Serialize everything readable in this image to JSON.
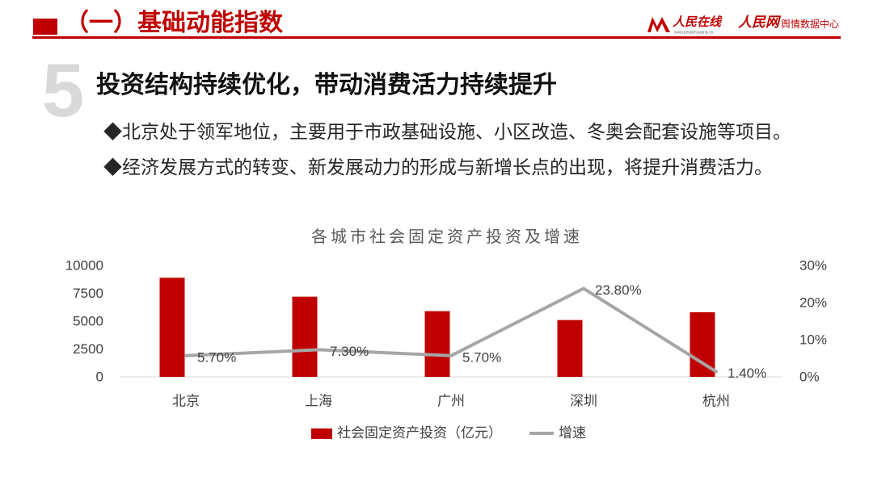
{
  "colors": {
    "accent": "#C00000",
    "slide_number": "#D9D9D9",
    "text": "#262626",
    "chart_text": "#404040"
  },
  "header": {
    "section_title": "（一）基础动能指数",
    "logos": [
      {
        "icon": "people-online-logo-icon",
        "name": "人民在线",
        "url_text": "www.peopleyuqing.cn"
      },
      {
        "name": "人民网",
        "subtitle": "舆情数据中心"
      }
    ]
  },
  "slide": {
    "number": "5",
    "title": "投资结构持续优化，带动消费活力持续提升",
    "bullet_marker": "◆",
    "bullets": [
      "北京处于领军地位，主要用于市政基础设施、小区改造、冬奥会配套设施等项目。",
      "经济发展方式的转变、新发展动力的形成与新增长点的出现，将提升消费活力。"
    ]
  },
  "chart_data": {
    "type": "bar",
    "title": "各城市社会固定资产投资及增速",
    "categories": [
      "北京",
      "上海",
      "广州",
      "深圳",
      "杭州"
    ],
    "series": [
      {
        "name": "社会固定资产投资（亿元）",
        "type": "bar",
        "axis": "left",
        "color": "#C00000",
        "values": [
          8900,
          7200,
          5900,
          5100,
          5800
        ]
      },
      {
        "name": "增速",
        "type": "line",
        "axis": "right",
        "color": "#A6A6A6",
        "values": [
          5.7,
          7.3,
          5.7,
          23.8,
          1.4
        ],
        "data_labels": [
          "5.70%",
          "7.30%",
          "5.70%",
          "23.80%",
          "1.40%"
        ]
      }
    ],
    "y_left": {
      "range": [
        0,
        10000
      ],
      "ticks": [
        0,
        2500,
        5000,
        7500,
        10000
      ],
      "tick_labels": [
        "0",
        "2500",
        "5000",
        "7500",
        "10000"
      ]
    },
    "y_right": {
      "range": [
        0,
        30
      ],
      "ticks": [
        0,
        10,
        20,
        30
      ],
      "tick_labels": [
        "0%",
        "10%",
        "20%",
        "30%"
      ]
    },
    "grid": false,
    "legend_position": "bottom"
  }
}
